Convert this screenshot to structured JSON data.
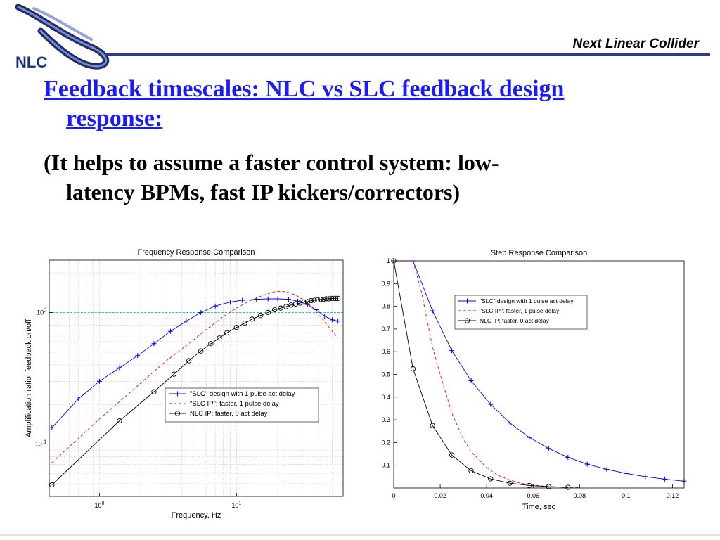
{
  "header": {
    "title": "Next Linear Collider",
    "logo_text": "NLC"
  },
  "slide": {
    "heading_line1": "Feedback timescales:   NLC vs SLC feedback design",
    "heading_line2": "response:",
    "body_line1": "(It helps to assume a faster control system:  low-",
    "body_line2": "latency BPMs, fast IP kickers/correctors)"
  },
  "colors": {
    "slc_design": "#0000ff",
    "slc_ip": "#ff0000",
    "nlc_ip": "#000000",
    "reference_line": "#00c8c8",
    "heading": "#1a1aff"
  },
  "chart_data": [
    {
      "type": "line",
      "title": "Frequency Response Comparison",
      "xlabel": "Frequency, Hz",
      "ylabel": "Amplification ratio: feedback on/off",
      "xscale": "log",
      "yscale": "log",
      "xlim": [
        0.43,
        60
      ],
      "ylim": [
        0.04,
        2.5
      ],
      "xticks": [
        {
          "v": 1,
          "b": "10",
          "e": "0"
        },
        {
          "v": 10,
          "b": "10",
          "e": "1"
        }
      ],
      "yticks": [
        {
          "v": 0.1,
          "b": "10",
          "e": "-1"
        },
        {
          "v": 1,
          "b": "10",
          "e": "0"
        }
      ],
      "grid": true,
      "reference_line_y": 1,
      "legend": {
        "position": "bottom-right"
      },
      "series": [
        {
          "name": "\"SLC\" design with 1 pulse act delay",
          "marker": "plus",
          "line": "solid",
          "color": "#0000ff",
          "x": [
            0.45,
            0.7,
            1.0,
            1.4,
            1.9,
            2.5,
            3.3,
            4.3,
            5.5,
            7,
            9,
            11,
            14,
            17,
            20,
            24,
            28,
            33,
            38,
            44,
            50,
            55
          ],
          "y": [
            0.133,
            0.22,
            0.3,
            0.38,
            0.47,
            0.58,
            0.72,
            0.86,
            1.0,
            1.12,
            1.2,
            1.24,
            1.26,
            1.27,
            1.27,
            1.26,
            1.22,
            1.15,
            1.05,
            0.94,
            0.88,
            0.86
          ]
        },
        {
          "name": "\"SLC IP\": faster, 1 pulse delay",
          "marker": "none",
          "line": "dashed",
          "color": "#ff0000",
          "x": [
            0.45,
            1,
            2,
            3,
            4.5,
            6,
            8,
            10,
            12,
            15,
            18,
            20,
            23,
            27,
            31,
            36,
            42,
            48,
            55
          ],
          "y": [
            0.072,
            0.155,
            0.29,
            0.42,
            0.58,
            0.74,
            0.93,
            1.08,
            1.2,
            1.33,
            1.42,
            1.45,
            1.44,
            1.36,
            1.24,
            1.08,
            0.9,
            0.76,
            0.64
          ]
        },
        {
          "name": "NLC IP: faster, 0 act delay",
          "marker": "circle",
          "line": "solid",
          "color": "#000000",
          "x": [
            0.45,
            1.4,
            2.5,
            3.5,
            4.5,
            5.5,
            6.5,
            7.5,
            8.5,
            10,
            11.5,
            13,
            15,
            17,
            19,
            21,
            23,
            25,
            27,
            29,
            31,
            33,
            35,
            37,
            39,
            41,
            43,
            45,
            47,
            49,
            51,
            53,
            55
          ],
          "y": [
            0.049,
            0.15,
            0.25,
            0.34,
            0.43,
            0.51,
            0.58,
            0.64,
            0.7,
            0.77,
            0.83,
            0.89,
            0.95,
            1.0,
            1.05,
            1.08,
            1.11,
            1.14,
            1.16,
            1.18,
            1.2,
            1.21,
            1.23,
            1.24,
            1.25,
            1.26,
            1.26,
            1.27,
            1.27,
            1.28,
            1.28,
            1.28,
            1.28
          ]
        }
      ]
    },
    {
      "type": "line",
      "title": "Step Response Comparison",
      "xlabel": "Time, sec",
      "ylabel": "",
      "xlim": [
        0,
        0.125
      ],
      "ylim": [
        0,
        1
      ],
      "xticks": [
        0,
        0.02,
        0.04,
        0.06,
        0.08,
        0.1,
        0.12
      ],
      "yticks": [
        0.1,
        0.2,
        0.3,
        0.4,
        0.5,
        0.6,
        0.7,
        0.8,
        0.9,
        1
      ],
      "grid": false,
      "legend": {
        "position": "top-right"
      },
      "series": [
        {
          "name": "\"SLC\" design with 1 pulse act delay",
          "marker": "plus",
          "line": "solid",
          "color": "#0000ff",
          "x": [
            0,
            0.0083,
            0.0167,
            0.025,
            0.0333,
            0.0417,
            0.05,
            0.0583,
            0.0667,
            0.075,
            0.0833,
            0.0917,
            0.1,
            0.1083,
            0.1167,
            0.125
          ],
          "y": [
            1,
            1,
            0.78,
            0.605,
            0.472,
            0.368,
            0.286,
            0.223,
            0.174,
            0.135,
            0.105,
            0.082,
            0.064,
            0.05,
            0.039,
            0.03
          ]
        },
        {
          "name": "\"SLC IP\": faster, 1 pulse delay",
          "marker": "none",
          "line": "dashed",
          "color": "#ff0000",
          "x": [
            0,
            0.0083,
            0.012,
            0.0167,
            0.02,
            0.025,
            0.03,
            0.0333,
            0.04,
            0.045,
            0.05,
            0.055,
            0.06,
            0.065,
            0.07,
            0.075,
            0.08
          ],
          "y": [
            1,
            1,
            0.86,
            0.62,
            0.5,
            0.33,
            0.215,
            0.16,
            0.09,
            0.055,
            0.035,
            0.02,
            0.013,
            0.008,
            0.005,
            0.003,
            0.002
          ]
        },
        {
          "name": "NLC IP: faster, 0 act delay",
          "marker": "circle",
          "line": "solid",
          "color": "#000000",
          "x": [
            0,
            0.0083,
            0.0167,
            0.025,
            0.0333,
            0.0417,
            0.05,
            0.0583,
            0.0667,
            0.075
          ],
          "y": [
            1,
            0.525,
            0.275,
            0.145,
            0.076,
            0.04,
            0.021,
            0.011,
            0.006,
            0.003
          ]
        }
      ]
    }
  ]
}
